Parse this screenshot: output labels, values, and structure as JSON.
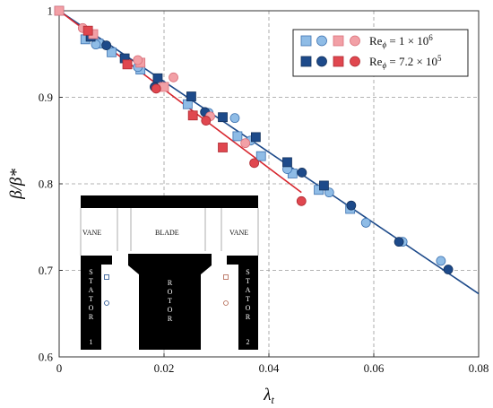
{
  "chart_data": {
    "type": "scatter",
    "xlabel": "λ",
    "xlabel_sub": "t",
    "ylabel": "β/β*",
    "xlim": [
      0,
      0.08
    ],
    "ylim": [
      0.6,
      1.0
    ],
    "xticks": [
      0,
      0.02,
      0.04,
      0.06,
      0.08
    ],
    "xtick_labels": [
      "0",
      "0.02",
      "0.04",
      "0.06",
      "0.08"
    ],
    "yticks": [
      0.6,
      0.7,
      0.8,
      0.9,
      1.0
    ],
    "ytick_labels": [
      "0.6",
      "0.7",
      "0.8",
      "0.9",
      "1"
    ],
    "grid": true,
    "legend_position": "top-right",
    "legend": [
      {
        "label_prefix": "Re",
        "label_sub": "ϕ",
        "label_value": " = 1 × 10",
        "label_exp": "6"
      },
      {
        "label_prefix": "Re",
        "label_sub": "ϕ",
        "label_value": " = 7.2 × 10",
        "label_exp": "5"
      }
    ],
    "colors": {
      "light_blue": "#8fbce6",
      "dark_blue": "#1d4a8a",
      "light_red": "#f2a0a6",
      "dark_red": "#e0474f",
      "fit_blue": "#1d4a8a",
      "fit_red": "#d7262e"
    },
    "series": [
      {
        "marker": "square",
        "color_key": "light_blue",
        "x": [
          0.0,
          0.005,
          0.0075,
          0.01,
          0.0155,
          0.0245,
          0.034,
          0.0385,
          0.0445,
          0.0495,
          0.0555
        ],
        "y": [
          1.0,
          0.967,
          0.962,
          0.952,
          0.932,
          0.892,
          0.855,
          0.832,
          0.812,
          0.793,
          0.771
        ]
      },
      {
        "marker": "circle",
        "color_key": "light_blue",
        "x": [
          0.007,
          0.015,
          0.0285,
          0.0335,
          0.0365,
          0.0435,
          0.0515,
          0.0585,
          0.0655,
          0.0728
        ],
        "y": [
          0.961,
          0.935,
          0.882,
          0.876,
          0.85,
          0.817,
          0.79,
          0.755,
          0.733,
          0.711
        ]
      },
      {
        "marker": "square",
        "color_key": "dark_blue",
        "x": [
          0.006,
          0.0125,
          0.0188,
          0.0252,
          0.0312,
          0.0375,
          0.0435,
          0.0505
        ],
        "y": [
          0.97,
          0.945,
          0.922,
          0.901,
          0.877,
          0.854,
          0.825,
          0.798
        ]
      },
      {
        "marker": "circle",
        "color_key": "dark_blue",
        "x": [
          0.009,
          0.0182,
          0.0278,
          0.0463,
          0.0557,
          0.0648,
          0.0742
        ],
        "y": [
          0.96,
          0.912,
          0.883,
          0.813,
          0.775,
          0.733,
          0.701
        ]
      },
      {
        "marker": "square",
        "color_key": "light_red",
        "x": [
          0.0,
          0.0065,
          0.0155,
          0.02
        ],
        "y": [
          1.0,
          0.973,
          0.94,
          0.912
        ]
      },
      {
        "marker": "circle",
        "color_key": "light_red",
        "x": [
          0.0045,
          0.015,
          0.0218,
          0.0288,
          0.0355
        ],
        "y": [
          0.98,
          0.943,
          0.923,
          0.878,
          0.847
        ]
      },
      {
        "marker": "square",
        "color_key": "dark_red",
        "x": [
          0.0055,
          0.013,
          0.0255,
          0.0312
        ],
        "y": [
          0.977,
          0.938,
          0.879,
          0.842
        ]
      },
      {
        "marker": "circle",
        "color_key": "dark_red",
        "x": [
          0.0185,
          0.028,
          0.0372,
          0.0462
        ],
        "y": [
          0.91,
          0.873,
          0.824,
          0.78
        ]
      }
    ],
    "fits": [
      {
        "color_key": "fit_blue",
        "x": [
          0.0,
          0.08
        ],
        "y": [
          1.0,
          0.673
        ]
      },
      {
        "color_key": "fit_red",
        "x": [
          0.0,
          0.0462
        ],
        "y": [
          1.0,
          0.79
        ]
      }
    ],
    "inset": {
      "labels": [
        "VANE",
        "BLADE",
        "VANE",
        "STATOR",
        "ROTOR",
        "STATOR"
      ],
      "numbers": [
        "1",
        "2"
      ]
    }
  }
}
